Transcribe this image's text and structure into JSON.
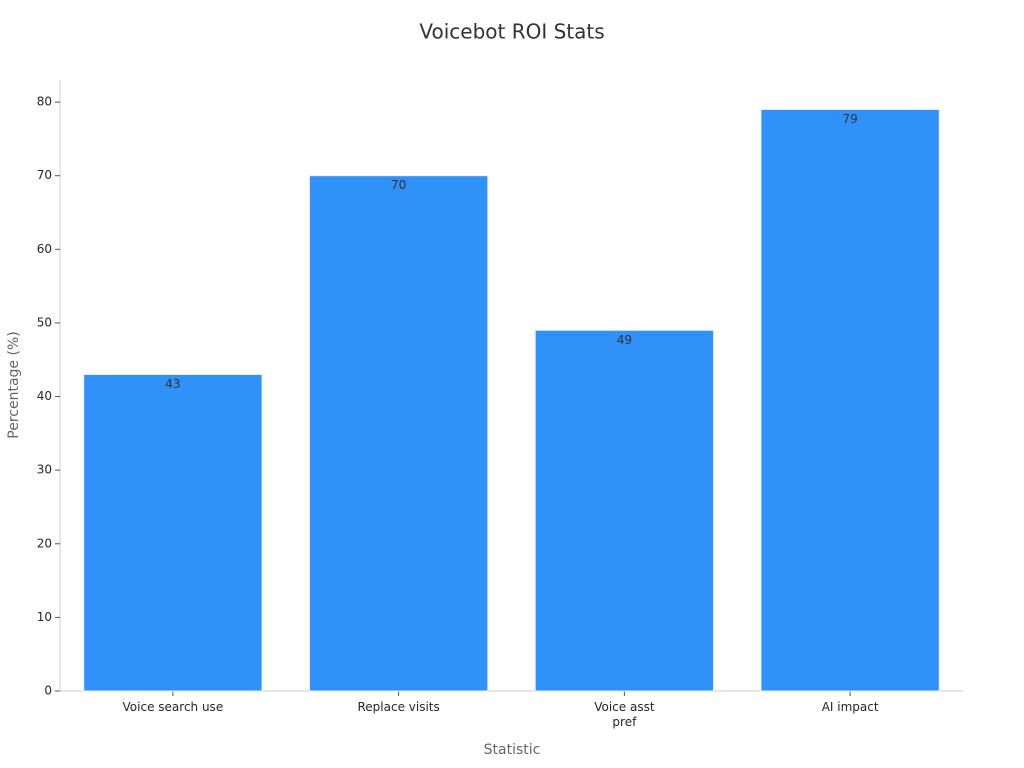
{
  "chart_data": {
    "type": "bar",
    "title": "Voicebot ROI Stats",
    "x_label": "Statistic",
    "y_label": "Percentage (%)",
    "categories": [
      "Voice search use",
      "Replace visits",
      "Voice asst\npref",
      "AI impact"
    ],
    "values": [
      43,
      70,
      49,
      79
    ],
    "color": "#3091f8",
    "ylim": [
      0,
      83
    ],
    "yticks": [
      0,
      10,
      20,
      30,
      40,
      50,
      60,
      70,
      80
    ],
    "grid": false
  }
}
